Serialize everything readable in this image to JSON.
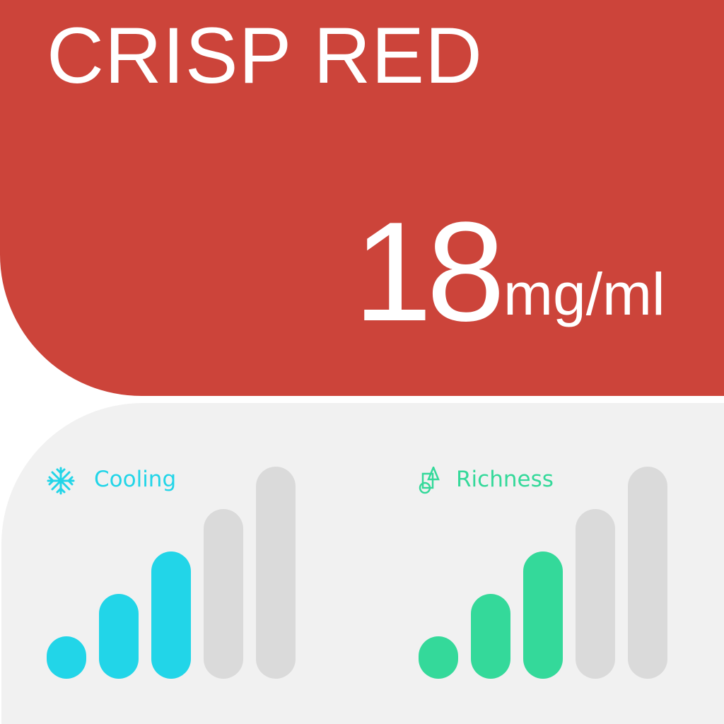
{
  "product": {
    "name": "CRISP RED",
    "strength": "18",
    "unit": "mg/ml"
  },
  "meters": [
    {
      "label": "Cooling",
      "icon": "snowflake-icon",
      "level": 3,
      "max": 5,
      "color": "#22d5e8",
      "off_color": "#dadada"
    },
    {
      "label": "Richness",
      "icon": "shapes-icon",
      "level": 3,
      "max": 5,
      "color": "#34d99a",
      "off_color": "#dadada"
    }
  ],
  "colors": {
    "brand": "#cc443a",
    "panel": "#f1f1f1"
  }
}
